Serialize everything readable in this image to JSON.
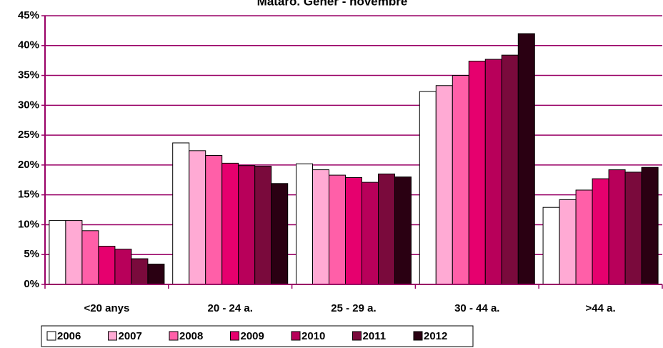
{
  "chart_data": {
    "type": "bar",
    "title": "Mataró. Gener - novembre",
    "categories": [
      "<20 anys",
      "20 - 24 a.",
      "25 - 29 a.",
      "30 - 44 a.",
      ">44 a."
    ],
    "series": [
      {
        "name": "2006",
        "color": "#ffffff",
        "values": [
          10.7,
          23.7,
          20.2,
          32.3,
          12.9
        ]
      },
      {
        "name": "2007",
        "color": "#ffaad4",
        "values": [
          10.7,
          22.4,
          19.2,
          33.3,
          14.2
        ]
      },
      {
        "name": "2008",
        "color": "#ff5fa8",
        "values": [
          9.0,
          21.6,
          18.3,
          35.0,
          15.8
        ]
      },
      {
        "name": "2009",
        "color": "#e6006e",
        "values": [
          6.4,
          20.3,
          17.9,
          37.4,
          17.7
        ]
      },
      {
        "name": "2010",
        "color": "#b8005a",
        "values": [
          5.9,
          19.9,
          17.1,
          37.7,
          19.2
        ]
      },
      {
        "name": "2011",
        "color": "#7a0a3c",
        "values": [
          4.3,
          19.8,
          18.5,
          38.4,
          18.8
        ]
      },
      {
        "name": "2012",
        "color": "#2a0012",
        "values": [
          3.4,
          16.9,
          18.0,
          42.0,
          19.6
        ]
      }
    ],
    "ylim": [
      0,
      45
    ],
    "yticks": [
      {
        "value": 0,
        "label": "0%"
      },
      {
        "value": 5,
        "label": "5%"
      },
      {
        "value": 10,
        "label": "10%"
      },
      {
        "value": 15,
        "label": "15%"
      },
      {
        "value": 20,
        "label": "20%"
      },
      {
        "value": 25,
        "label": "25%"
      },
      {
        "value": 30,
        "label": "30%"
      },
      {
        "value": 35,
        "label": "35%"
      },
      {
        "value": 40,
        "label": "40%"
      },
      {
        "value": 45,
        "label": "45%"
      }
    ],
    "grid": true
  }
}
